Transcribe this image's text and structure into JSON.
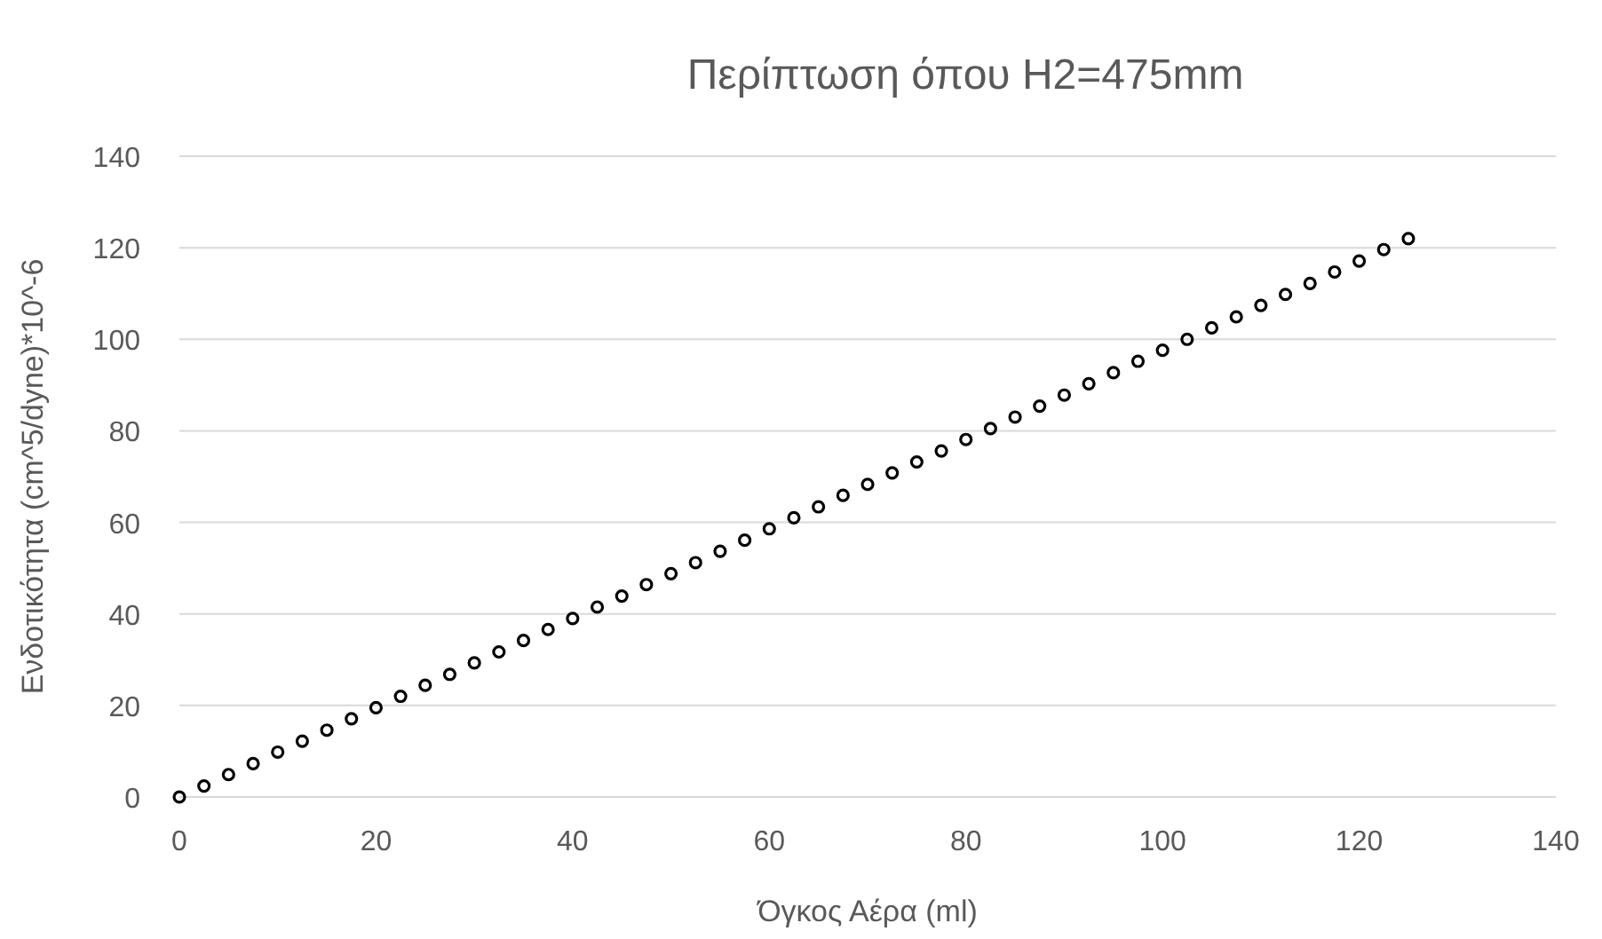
{
  "chart_data": {
    "type": "scatter",
    "title": "Περίπτωση όπου H2=475mm",
    "xlabel": "Όγκος Αέρα (ml)",
    "ylabel": "Ενδοτικότητα (cm^5/dyne)*10^-6",
    "x": [
      0,
      2.5,
      5,
      7.5,
      10,
      12.5,
      15,
      17.5,
      20,
      22.5,
      25,
      27.5,
      30,
      32.5,
      35,
      37.5,
      40,
      42.5,
      45,
      47.5,
      50,
      52.5,
      55,
      57.5,
      60,
      62.5,
      65,
      67.5,
      70,
      72.5,
      75,
      77.5,
      80,
      82.5,
      85,
      87.5,
      90,
      92.5,
      95,
      97.5,
      100,
      102.5,
      105,
      107.5,
      110,
      112.5,
      115,
      117.5,
      120,
      122.5,
      125
    ],
    "series": [
      {
        "color": "#000000",
        "values": [
          0,
          2.4,
          4.9,
          7.3,
          9.8,
          12.2,
          14.6,
          17.1,
          19.5,
          22.0,
          24.4,
          26.8,
          29.3,
          31.7,
          34.2,
          36.6,
          39.0,
          41.5,
          43.9,
          46.4,
          48.8,
          51.2,
          53.7,
          56.1,
          58.6,
          61.0,
          63.4,
          65.9,
          68.3,
          70.8,
          73.2,
          75.6,
          78.1,
          80.5,
          83.0,
          85.4,
          87.8,
          90.3,
          92.7,
          95.2,
          97.6,
          100.0,
          102.5,
          104.9,
          107.4,
          109.8,
          112.2,
          114.7,
          117.1,
          119.6,
          122.0
        ]
      }
    ],
    "xlim": [
      0,
      140
    ],
    "xticks": [
      0,
      20,
      40,
      60,
      80,
      100,
      120,
      140
    ],
    "ylim": [
      0,
      140
    ],
    "yticks": [
      0,
      20,
      40,
      60,
      80,
      100,
      120,
      140
    ],
    "grid": "y",
    "marker": "circle"
  }
}
